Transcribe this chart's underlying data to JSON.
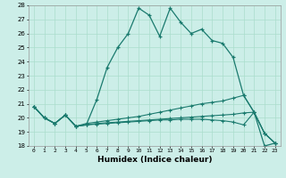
{
  "title": "",
  "xlabel": "Humidex (Indice chaleur)",
  "bg_color": "#cceee8",
  "grid_color": "#aaddcc",
  "line_color": "#1a7a6e",
  "xlim": [
    -0.5,
    23.5
  ],
  "ylim": [
    18,
    28
  ],
  "xticks": [
    0,
    1,
    2,
    3,
    4,
    5,
    6,
    7,
    8,
    9,
    10,
    11,
    12,
    13,
    14,
    15,
    16,
    17,
    18,
    19,
    20,
    21,
    22,
    23
  ],
  "yticks": [
    18,
    19,
    20,
    21,
    22,
    23,
    24,
    25,
    26,
    27,
    28
  ],
  "series0": [
    20.8,
    20.0,
    19.6,
    20.2,
    19.4,
    19.5,
    21.3,
    23.6,
    25.0,
    26.0,
    27.8,
    27.3,
    25.8,
    27.8,
    26.8,
    26.0,
    26.3,
    25.5,
    25.3,
    24.3,
    21.6,
    20.4,
    18.0,
    18.2
  ],
  "series1": [
    20.8,
    20.0,
    19.6,
    20.2,
    19.4,
    19.6,
    19.7,
    19.8,
    19.9,
    20.0,
    20.1,
    20.25,
    20.4,
    20.55,
    20.7,
    20.85,
    21.0,
    21.1,
    21.2,
    21.4,
    21.6,
    20.4,
    18.9,
    18.2
  ],
  "series2": [
    20.8,
    20.0,
    19.6,
    20.2,
    19.4,
    19.5,
    19.6,
    19.65,
    19.7,
    19.75,
    19.8,
    19.85,
    19.9,
    19.95,
    20.0,
    20.05,
    20.1,
    20.15,
    20.2,
    20.25,
    20.35,
    20.4,
    18.9,
    18.2
  ],
  "series3": [
    20.8,
    20.0,
    19.6,
    20.2,
    19.4,
    19.5,
    19.55,
    19.6,
    19.65,
    19.7,
    19.75,
    19.8,
    19.85,
    19.85,
    19.9,
    19.9,
    19.9,
    19.85,
    19.8,
    19.7,
    19.5,
    20.4,
    18.9,
    18.2
  ]
}
